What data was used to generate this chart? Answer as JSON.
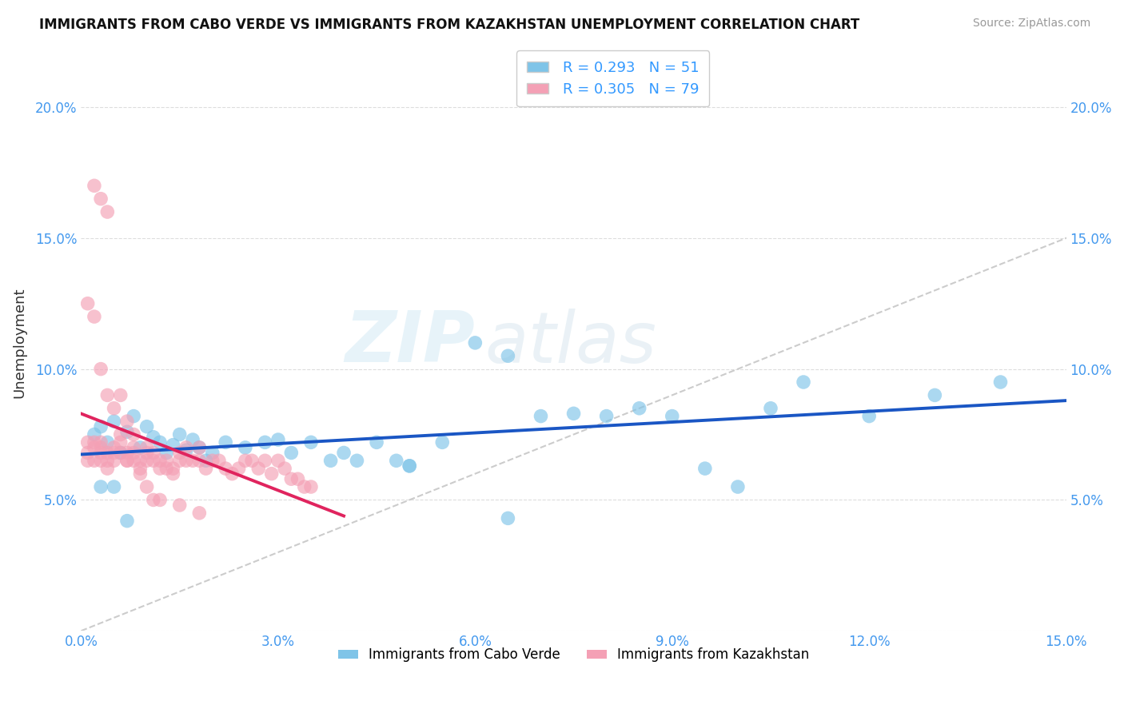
{
  "title": "IMMIGRANTS FROM CABO VERDE VS IMMIGRANTS FROM KAZAKHSTAN UNEMPLOYMENT CORRELATION CHART",
  "source": "Source: ZipAtlas.com",
  "ylabel": "Unemployment",
  "xlim": [
    0.0,
    0.15
  ],
  "ylim": [
    0.0,
    0.22
  ],
  "xticks": [
    0.0,
    0.03,
    0.06,
    0.09,
    0.12,
    0.15
  ],
  "yticks": [
    0.0,
    0.05,
    0.1,
    0.15,
    0.2
  ],
  "ytick_labels": [
    "",
    "5.0%",
    "10.0%",
    "15.0%",
    "20.0%"
  ],
  "xtick_labels": [
    "0.0%",
    "3.0%",
    "6.0%",
    "9.0%",
    "12.0%",
    "15.0%"
  ],
  "cabo_verde_color": "#7fc4e8",
  "kazakhstan_color": "#f4a0b5",
  "cabo_verde_R": 0.293,
  "cabo_verde_N": 51,
  "kazakhstan_R": 0.305,
  "kazakhstan_N": 79,
  "trend_line_cabo_color": "#1a56c4",
  "trend_line_kaz_color": "#e0245e",
  "diagonal_color": "#cccccc",
  "legend_label_1": "Immigrants from Cabo Verde",
  "legend_label_2": "Immigrants from Kazakhstan",
  "cabo_verde_x": [
    0.002,
    0.003,
    0.004,
    0.005,
    0.006,
    0.007,
    0.008,
    0.009,
    0.01,
    0.011,
    0.012,
    0.013,
    0.014,
    0.015,
    0.016,
    0.017,
    0.018,
    0.019,
    0.02,
    0.022,
    0.025,
    0.028,
    0.03,
    0.032,
    0.035,
    0.038,
    0.04,
    0.042,
    0.045,
    0.048,
    0.05,
    0.055,
    0.06,
    0.065,
    0.07,
    0.075,
    0.08,
    0.085,
    0.09,
    0.095,
    0.1,
    0.105,
    0.11,
    0.12,
    0.13,
    0.14,
    0.003,
    0.005,
    0.007,
    0.05,
    0.065
  ],
  "cabo_verde_y": [
    0.075,
    0.078,
    0.072,
    0.08,
    0.068,
    0.076,
    0.082,
    0.07,
    0.078,
    0.074,
    0.072,
    0.068,
    0.071,
    0.075,
    0.069,
    0.073,
    0.07,
    0.065,
    0.068,
    0.072,
    0.07,
    0.072,
    0.073,
    0.068,
    0.072,
    0.065,
    0.068,
    0.065,
    0.072,
    0.065,
    0.063,
    0.072,
    0.11,
    0.105,
    0.082,
    0.083,
    0.082,
    0.085,
    0.082,
    0.062,
    0.055,
    0.085,
    0.095,
    0.082,
    0.09,
    0.095,
    0.055,
    0.055,
    0.042,
    0.063,
    0.043
  ],
  "kazakhstan_x": [
    0.001,
    0.001,
    0.001,
    0.002,
    0.002,
    0.002,
    0.003,
    0.003,
    0.003,
    0.003,
    0.004,
    0.004,
    0.004,
    0.005,
    0.005,
    0.005,
    0.006,
    0.006,
    0.006,
    0.007,
    0.007,
    0.007,
    0.008,
    0.008,
    0.008,
    0.009,
    0.009,
    0.01,
    0.01,
    0.01,
    0.011,
    0.011,
    0.012,
    0.012,
    0.013,
    0.013,
    0.014,
    0.014,
    0.015,
    0.015,
    0.016,
    0.016,
    0.017,
    0.018,
    0.018,
    0.019,
    0.02,
    0.021,
    0.022,
    0.023,
    0.024,
    0.025,
    0.026,
    0.027,
    0.028,
    0.029,
    0.03,
    0.031,
    0.032,
    0.033,
    0.034,
    0.035,
    0.001,
    0.002,
    0.003,
    0.004,
    0.005,
    0.006,
    0.007,
    0.008,
    0.009,
    0.01,
    0.011,
    0.012,
    0.015,
    0.018,
    0.002,
    0.003,
    0.004
  ],
  "kazakhstan_y": [
    0.072,
    0.065,
    0.068,
    0.065,
    0.07,
    0.072,
    0.065,
    0.068,
    0.07,
    0.072,
    0.062,
    0.065,
    0.068,
    0.07,
    0.065,
    0.068,
    0.068,
    0.072,
    0.075,
    0.065,
    0.068,
    0.065,
    0.065,
    0.07,
    0.068,
    0.062,
    0.065,
    0.065,
    0.068,
    0.07,
    0.065,
    0.068,
    0.062,
    0.065,
    0.062,
    0.065,
    0.06,
    0.062,
    0.065,
    0.068,
    0.065,
    0.07,
    0.065,
    0.07,
    0.065,
    0.062,
    0.065,
    0.065,
    0.062,
    0.06,
    0.062,
    0.065,
    0.065,
    0.062,
    0.065,
    0.06,
    0.065,
    0.062,
    0.058,
    0.058,
    0.055,
    0.055,
    0.125,
    0.12,
    0.1,
    0.09,
    0.085,
    0.09,
    0.08,
    0.075,
    0.06,
    0.055,
    0.05,
    0.05,
    0.048,
    0.045,
    0.17,
    0.165,
    0.16
  ]
}
